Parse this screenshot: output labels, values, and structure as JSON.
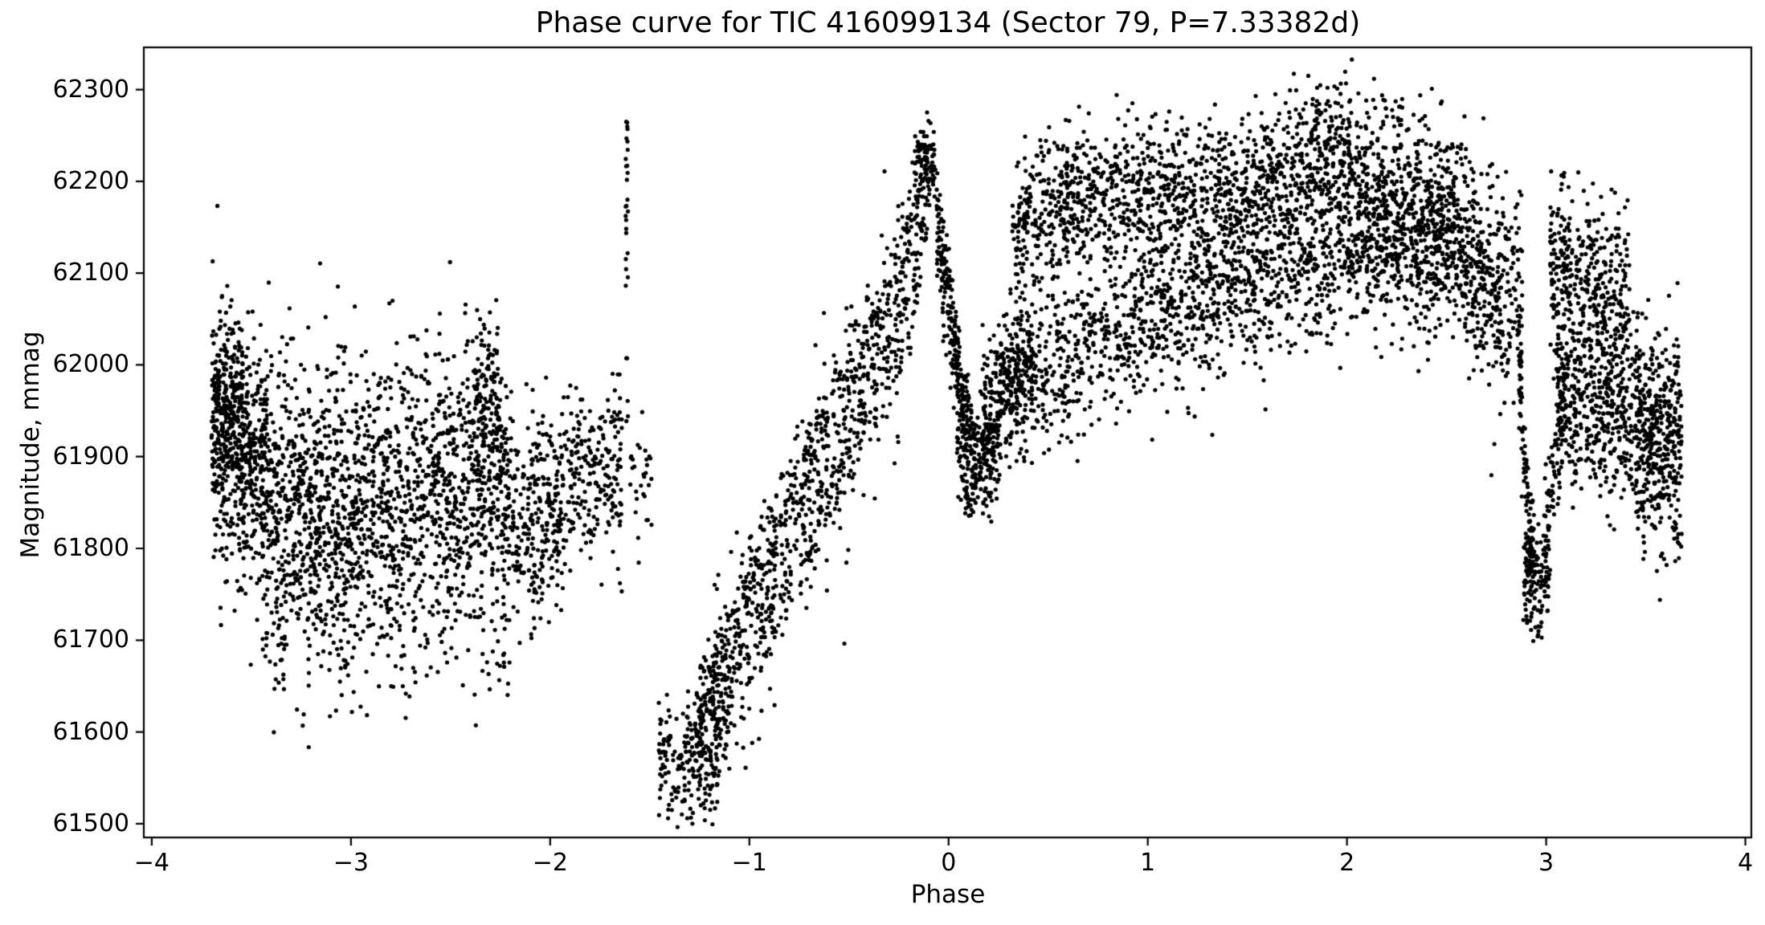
{
  "chart_data": {
    "type": "scatter",
    "title": "Phase curve for TIC 416099134 (Sector 79, P=7.33382d)",
    "xlabel": "Phase",
    "ylabel": "Magnitude, mmag",
    "xlim": [
      -4.04,
      4.03
    ],
    "ylim": [
      61485,
      62346
    ],
    "xticks": [
      -4,
      -3,
      -2,
      -1,
      0,
      1,
      2,
      3,
      4
    ],
    "xtick_labels": [
      "−4",
      "−3",
      "−2",
      "−1",
      "0",
      "1",
      "2",
      "3",
      "4"
    ],
    "yticks": [
      61500,
      61600,
      61700,
      61800,
      61900,
      62000,
      62100,
      62200,
      62300
    ],
    "ytick_labels": [
      "61500",
      "61600",
      "61700",
      "61800",
      "61900",
      "62000",
      "62100",
      "62200",
      "62300"
    ],
    "grid": false,
    "legend": null,
    "marker": {
      "color": "#000000",
      "radius": 2.6
    },
    "axis_color": "#000000",
    "tick_length": 10,
    "spine_width": 2.2,
    "seed": 1416099134,
    "data_phase_range": [
      -3.7,
      3.68
    ],
    "features": [
      {
        "name": "left-plateau",
        "phase": [
          -3.7,
          -1.64
        ],
        "mag_center": 61860,
        "mag_range": [
          61630,
          62075
        ]
      },
      {
        "name": "flare-spike",
        "phase": -1.615,
        "mag_range": [
          61900,
          62265
        ]
      },
      {
        "name": "primary-eclipse-minimum",
        "phase": [
          -1.46,
          -1.16
        ],
        "mag_min": 61520
      },
      {
        "name": "rising-branch",
        "phase": [
          -1.25,
          -0.1
        ],
        "mag": [
          61615,
          62225
        ]
      },
      {
        "name": "pre-zero-peak",
        "phase": -0.12,
        "mag_max": 62250
      },
      {
        "name": "post-peak-dip",
        "phase": [
          0.0,
          0.25
        ],
        "mag_min": 61840
      },
      {
        "name": "broad-maximum",
        "phase": [
          0.3,
          2.6
        ],
        "mag_top": 62310,
        "peak_phase": 2.0
      },
      {
        "name": "narrow-dip",
        "phase": [
          2.86,
          3.04
        ],
        "mag_min": 61700
      },
      {
        "name": "right-decline",
        "phase": [
          3.05,
          3.68
        ],
        "mag_range": [
          61760,
          62200
        ]
      }
    ],
    "point_generators": {
      "bands": [
        {
          "p0": -3.7,
          "p1": -3.42,
          "m0": 61915,
          "m1": 61890,
          "s": 70,
          "n": 520
        },
        {
          "p0": -3.7,
          "p1": -3.54,
          "m0": 61975,
          "m1": 61955,
          "s": 45,
          "n": 170
        },
        {
          "p0": -3.42,
          "p1": -3.0,
          "m0": 61850,
          "m1": 61830,
          "s": 80,
          "n": 640
        },
        {
          "p0": -3.0,
          "p1": -2.6,
          "m0": 61845,
          "m1": 61855,
          "s": 75,
          "n": 520
        },
        {
          "p0": -2.6,
          "p1": -2.22,
          "m0": 61875,
          "m1": 61865,
          "s": 70,
          "n": 500
        },
        {
          "p0": -2.38,
          "p1": -2.24,
          "m0": 61955,
          "m1": 61945,
          "s": 45,
          "n": 110
        },
        {
          "p0": -2.22,
          "p1": -1.93,
          "m0": 61835,
          "m1": 61845,
          "s": 60,
          "n": 300
        },
        {
          "p0": -1.93,
          "p1": -1.64,
          "m0": 61878,
          "m1": 61885,
          "s": 45,
          "n": 220
        },
        {
          "p0": -3.45,
          "p1": -2.2,
          "m0": 61700,
          "m1": 61700,
          "s": 40,
          "n": 150
        },
        {
          "p0": -1.6,
          "p1": -1.49,
          "m0": 61865,
          "m1": 61858,
          "s": 35,
          "n": 30
        },
        {
          "p0": -1.46,
          "p1": -1.16,
          "m0": 61572,
          "m1": 61558,
          "s": 30,
          "n": 170
        },
        {
          "p0": -1.32,
          "p1": -1.1,
          "m0": 61595,
          "m1": 61645,
          "s": 25,
          "n": 90
        },
        {
          "p0": -0.17,
          "p1": -0.06,
          "m0": 62222,
          "m1": 62212,
          "s": 18,
          "n": 90
        },
        {
          "p0": 0.04,
          "p1": 0.26,
          "m0": 61905,
          "m1": 61915,
          "s": 30,
          "n": 160
        },
        {
          "p0": 0.08,
          "p1": 0.22,
          "m0": 61856,
          "m1": 61860,
          "s": 16,
          "n": 40
        },
        {
          "p0": 0.16,
          "p1": 0.42,
          "m0": 61955,
          "m1": 62005,
          "s": 35,
          "n": 220
        },
        {
          "p0": 1.78,
          "p1": 2.28,
          "m0": 62272,
          "m1": 62265,
          "s": 17,
          "n": 60
        },
        {
          "p0": 2.05,
          "p1": 2.6,
          "m0": 62158,
          "m1": 62140,
          "s": 55,
          "n": 850
        },
        {
          "p0": 2.6,
          "p1": 2.88,
          "m0": 62108,
          "m1": 62058,
          "s": 58,
          "n": 330
        },
        {
          "p0": 2.88,
          "p1": 3.02,
          "m0": 61778,
          "m1": 61766,
          "s": 26,
          "n": 120
        },
        {
          "p0": 2.9,
          "p1": 2.98,
          "m0": 61718,
          "m1": 61714,
          "s": 9,
          "n": 15
        },
        {
          "p0": 3.02,
          "p1": 3.42,
          "m0": 62115,
          "m1": 62078,
          "s": 45,
          "n": 340
        },
        {
          "p0": 3.05,
          "p1": 3.45,
          "m0": 61985,
          "m1": 61940,
          "s": 55,
          "n": 470
        },
        {
          "p0": 3.45,
          "p1": 3.68,
          "m0": 61932,
          "m1": 61902,
          "s": 58,
          "n": 430
        }
      ],
      "paths": [
        {
          "pts": [
            [
              -1.25,
              61615
            ],
            [
              -1.05,
              61705
            ],
            [
              -0.85,
              61800
            ],
            [
              -0.65,
              61900
            ],
            [
              -0.45,
              61985
            ],
            [
              -0.3,
              62050
            ],
            [
              -0.18,
              62140
            ],
            [
              -0.1,
              62225
            ]
          ],
          "off": 25,
          "s": 22,
          "n": 450
        },
        {
          "pts": [
            [
              -1.25,
              61615
            ],
            [
              -1.05,
              61705
            ],
            [
              -0.85,
              61800
            ],
            [
              -0.65,
              61900
            ],
            [
              -0.45,
              61985
            ],
            [
              -0.3,
              62050
            ],
            [
              -0.18,
              62140
            ],
            [
              -0.1,
              62225
            ]
          ],
          "off": -50,
          "s": 30,
          "n": 420
        },
        {
          "pts": [
            [
              -1.25,
              61615
            ],
            [
              -1.05,
              61705
            ],
            [
              -0.85,
              61800
            ],
            [
              -0.65,
              61900
            ],
            [
              -0.45,
              61985
            ],
            [
              -0.3,
              62050
            ],
            [
              -0.18,
              62140
            ],
            [
              -0.1,
              62225
            ]
          ],
          "off": -15,
          "s": 85,
          "n": 200
        },
        {
          "pts": [
            [
              -0.06,
              62165
            ],
            [
              0.02,
              62050
            ],
            [
              0.08,
              61950
            ],
            [
              0.14,
              61905
            ]
          ],
          "off": 0,
          "s": 25,
          "n": 210
        },
        {
          "pts": [
            [
              -0.06,
              62165
            ],
            [
              0.02,
              62050
            ],
            [
              0.08,
              61950
            ],
            [
              0.14,
              61905
            ]
          ],
          "off": -40,
          "s": 30,
          "n": 70
        },
        {
          "pts": [
            [
              0.32,
              62150
            ],
            [
              0.6,
              62182
            ],
            [
              1.0,
              62190
            ],
            [
              1.4,
              62180
            ],
            [
              1.72,
              62212
            ],
            [
              2.05,
              62228
            ]
          ],
          "off": 0,
          "s": 38,
          "n": 1350
        },
        {
          "pts": [
            [
              0.26,
              61975
            ],
            [
              0.6,
              62012
            ],
            [
              1.0,
              62050
            ],
            [
              1.4,
              62075
            ],
            [
              1.75,
              62105
            ],
            [
              2.05,
              62122
            ]
          ],
          "off": 0,
          "s": 45,
          "n": 1250
        },
        {
          "pts": [
            [
              2.86,
              62000
            ],
            [
              2.9,
              61868
            ],
            [
              2.94,
              61782
            ]
          ],
          "off": 0,
          "s": 28,
          "n": 90
        },
        {
          "pts": [
            [
              2.98,
              61800
            ],
            [
              3.04,
              61900
            ],
            [
              3.1,
              61958
            ]
          ],
          "off": 0,
          "s": 30,
          "n": 80
        }
      ],
      "columns": [
        {
          "p": -1.615,
          "w": 0.012,
          "m0": 61905,
          "m1": 62265,
          "n": 18
        },
        {
          "p": -1.615,
          "w": 0.012,
          "m0": 62140,
          "m1": 62262,
          "n": 12
        }
      ]
    }
  }
}
